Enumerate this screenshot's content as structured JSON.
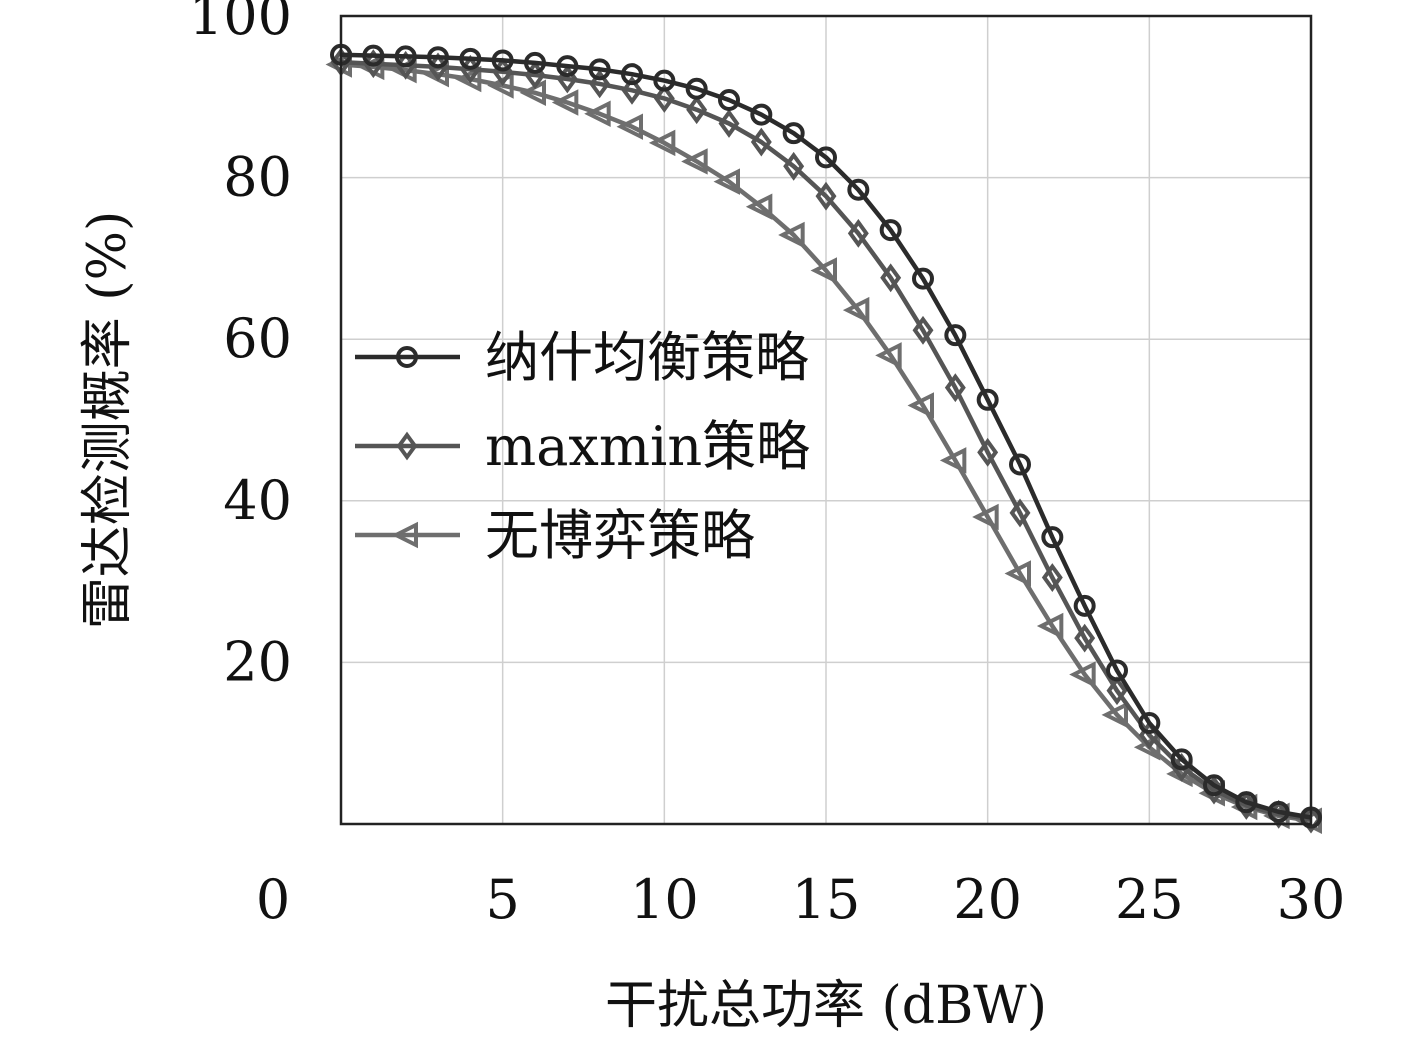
{
  "chart_data": {
    "type": "line",
    "title": "",
    "xlabel": "干扰总功率 (dBW)",
    "ylabel": "雷达检测概率 (%)",
    "xlim": [
      0,
      30
    ],
    "ylim": [
      0,
      100
    ],
    "grid": true,
    "legend_position": "center-left",
    "x_ticks": [
      "0",
      "5",
      "10",
      "15",
      "20",
      "25",
      "30"
    ],
    "y_ticks": [
      "20",
      "40",
      "60",
      "80",
      "100"
    ],
    "x": [
      0,
      1,
      2,
      3,
      4,
      5,
      6,
      7,
      8,
      9,
      10,
      11,
      12,
      13,
      14,
      15,
      16,
      17,
      18,
      19,
      20,
      21,
      22,
      23,
      24,
      25,
      26,
      27,
      28,
      29,
      30
    ],
    "series": [
      {
        "name": "纳什均衡策略",
        "marker": "circle",
        "color": "#2b2b2b",
        "values": [
          95.2,
          95.1,
          95.0,
          94.9,
          94.7,
          94.5,
          94.2,
          93.8,
          93.4,
          92.8,
          92.0,
          91.0,
          89.6,
          87.8,
          85.5,
          82.5,
          78.5,
          73.5,
          67.5,
          60.5,
          52.5,
          44.5,
          35.5,
          27.0,
          19.0,
          12.5,
          8.0,
          4.8,
          2.7,
          1.5,
          0.8
        ]
      },
      {
        "name": "maxmin策略",
        "marker": "diamond",
        "color": "#555555",
        "values": [
          94.3,
          94.1,
          93.9,
          93.7,
          93.4,
          93.1,
          92.7,
          92.2,
          91.6,
          90.8,
          89.8,
          88.4,
          86.7,
          84.4,
          81.4,
          77.7,
          73.1,
          67.6,
          61.1,
          54.0,
          46.0,
          38.5,
          30.5,
          23.0,
          16.5,
          11.0,
          7.0,
          4.2,
          2.3,
          1.2,
          0.6
        ]
      },
      {
        "name": "无博弈策略",
        "marker": "triangle-left",
        "color": "#6e6e6e",
        "values": [
          94.0,
          93.7,
          93.3,
          92.8,
          92.2,
          91.4,
          90.5,
          89.3,
          87.9,
          86.3,
          84.3,
          82.0,
          79.5,
          76.4,
          72.9,
          68.5,
          63.6,
          58.0,
          51.8,
          45.0,
          38.0,
          31.0,
          24.5,
          18.5,
          13.5,
          9.5,
          6.2,
          3.8,
          2.1,
          1.0,
          0.4
        ]
      }
    ]
  }
}
